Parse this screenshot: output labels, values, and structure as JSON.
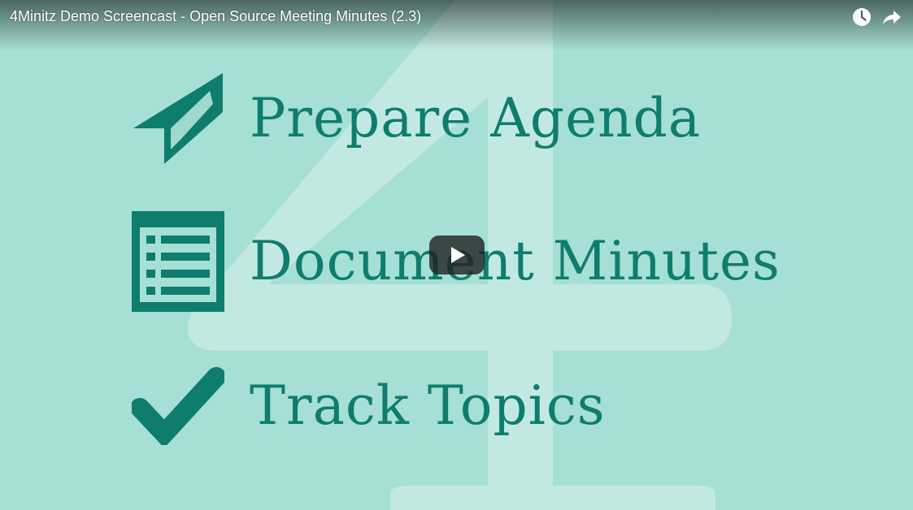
{
  "video": {
    "title": "4Minitz Demo Screencast - Open Source Meeting Minutes (2.3)"
  },
  "controls": {
    "watch_later_icon": "clock-icon",
    "share_icon": "share-arrow-icon",
    "play_icon": "play-icon"
  },
  "features": [
    {
      "label": "Prepare Agenda",
      "icon": "paper-plane-icon"
    },
    {
      "label": "Document Minutes",
      "icon": "list-document-icon"
    },
    {
      "label": "Track Topics",
      "icon": "checkmark-icon"
    }
  ],
  "colors": {
    "background": "#a6dfd5",
    "accent": "#0e7d6d",
    "watermark": "#c1e9e2"
  }
}
